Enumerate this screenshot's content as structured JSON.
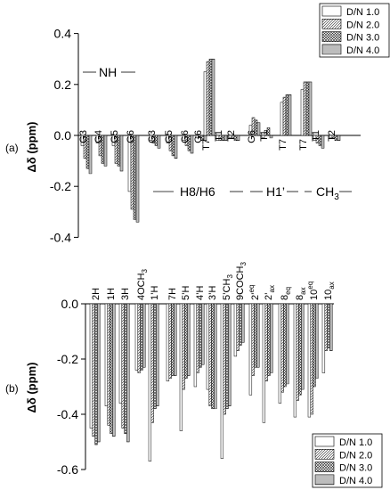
{
  "chart_data": [
    {
      "type": "bar",
      "panel_label": "(a)",
      "ylabel": "Δδ (ppm)",
      "ylim": [
        -0.4,
        0.4
      ],
      "yticks": [
        "0.4",
        "0.2",
        "0.0",
        "-0.2",
        "-0.4"
      ],
      "grid": false,
      "legend_placement": "top-right",
      "series": [
        {
          "name": "D/N 1.0",
          "pattern": "plain"
        },
        {
          "name": "D/N 2.0",
          "pattern": "diagonal"
        },
        {
          "name": "D/N 3.0",
          "pattern": "crosshatch"
        },
        {
          "name": "D/N 4.0",
          "pattern": "horizontal"
        }
      ],
      "categories": [
        "G3",
        "G4",
        "G5",
        "G6",
        "G3",
        "G5",
        "G6",
        "G6",
        "T7",
        "T1",
        "T2",
        "G6",
        "T1",
        "T7",
        "T7",
        "T1",
        "T2"
      ],
      "values": [
        [
          -0.04,
          -0.09,
          -0.13,
          -0.15
        ],
        [
          -0.03,
          -0.08,
          -0.11,
          -0.12
        ],
        [
          -0.04,
          -0.11,
          -0.12,
          -0.14
        ],
        [
          -0.22,
          -0.29,
          -0.33,
          -0.34
        ],
        [
          -0.02,
          -0.03,
          -0.04,
          -0.05
        ],
        [
          -0.03,
          -0.06,
          -0.08,
          -0.09
        ],
        [
          -0.02,
          -0.04,
          -0.06,
          -0.07
        ],
        [
          -0.01,
          -0.01,
          -0.02,
          -0.02
        ],
        [
          0.25,
          0.29,
          0.3,
          0.3
        ],
        [
          -0.02,
          -0.02,
          -0.02,
          -0.02
        ],
        [
          -0.01,
          -0.01,
          -0.02,
          -0.02
        ],
        [
          0.04,
          0.07,
          0.06,
          0.05
        ],
        [
          -0.01,
          0.02,
          0.03,
          -0.01
        ],
        [
          0.13,
          0.15,
          0.16,
          0.16
        ],
        [
          0.18,
          0.21,
          0.21,
          0.21
        ],
        [
          -0.02,
          -0.03,
          -0.04,
          -0.05
        ],
        [
          -0.01,
          -0.01,
          -0.02,
          -0.02
        ]
      ],
      "annotations": [
        "NH",
        "H8/H6",
        "H1’",
        "CH"
      ],
      "subscript": "3"
    },
    {
      "type": "bar",
      "panel_label": "(b)",
      "ylabel": "Δδ (ppm)",
      "ylim": [
        -0.6,
        0.0
      ],
      "yticks": [
        "0.0",
        "-0.2",
        "-0.4",
        "-0.6"
      ],
      "grid": false,
      "legend_placement": "bottom-right",
      "series": [
        {
          "name": "D/N 1.0",
          "pattern": "plain"
        },
        {
          "name": "D/N 2.0",
          "pattern": "diagonal"
        },
        {
          "name": "D/N 3.0",
          "pattern": "crosshatch"
        },
        {
          "name": "D/N 4.0",
          "pattern": "horizontal"
        }
      ],
      "categories": [
        {
          "base": "2H",
          "sub": "",
          "sup": ""
        },
        {
          "base": "1H",
          "sub": "",
          "sup": ""
        },
        {
          "base": "3H",
          "sub": "",
          "sup": ""
        },
        {
          "base": "4OCH",
          "sub": "3",
          "sup": ""
        },
        {
          "base": "1’H",
          "sub": "",
          "sup": ""
        },
        {
          "base": "7H",
          "sub": "",
          "sup": ""
        },
        {
          "base": "5’H",
          "sub": "",
          "sup": ""
        },
        {
          "base": "4’H",
          "sub": "",
          "sup": ""
        },
        {
          "base": "3’H",
          "sub": "",
          "sup": ""
        },
        {
          "base": "5’CH",
          "sub": "3",
          "sup": ""
        },
        {
          "base": "9COCH",
          "sub": "3",
          "sup": ""
        },
        {
          "base": "2’",
          "sub": "",
          "sup": "eq"
        },
        {
          "base": "2’",
          "sub": "ax",
          "sup": ""
        },
        {
          "base": "8",
          "sub": "eq",
          "sup": ""
        },
        {
          "base": "8",
          "sub": "ax",
          "sup": ""
        },
        {
          "base": "10",
          "sub": "",
          "sup": "eq"
        },
        {
          "base": "10",
          "sub": "ax",
          "sup": ""
        }
      ],
      "values": [
        [
          -0.45,
          -0.48,
          -0.51,
          -0.5
        ],
        [
          -0.37,
          -0.44,
          -0.47,
          -0.48
        ],
        [
          -0.36,
          -0.45,
          -0.47,
          -0.5
        ],
        [
          -0.24,
          -0.25,
          -0.24,
          -0.23
        ],
        [
          -0.57,
          -0.43,
          -0.38,
          -0.37
        ],
        [
          -0.28,
          -0.27,
          -0.26,
          -0.26
        ],
        [
          -0.46,
          -0.31,
          -0.27,
          -0.26
        ],
        [
          -0.3,
          -0.25,
          -0.23,
          -0.22
        ],
        [
          -0.31,
          -0.37,
          -0.38,
          -0.38
        ],
        [
          -0.56,
          -0.4,
          -0.38,
          -0.37
        ],
        [
          -0.19,
          -0.17,
          -0.15,
          -0.14
        ],
        [
          -0.33,
          -0.26,
          -0.23,
          -0.23
        ],
        [
          -0.43,
          -0.28,
          -0.26,
          -0.25
        ],
        [
          -0.36,
          -0.32,
          -0.3,
          -0.29
        ],
        [
          -0.41,
          -0.35,
          -0.33,
          -0.31
        ],
        [
          -0.41,
          -0.4,
          -0.3,
          -0.27
        ],
        [
          -0.25,
          -0.17,
          -0.16,
          -0.17
        ]
      ]
    }
  ]
}
